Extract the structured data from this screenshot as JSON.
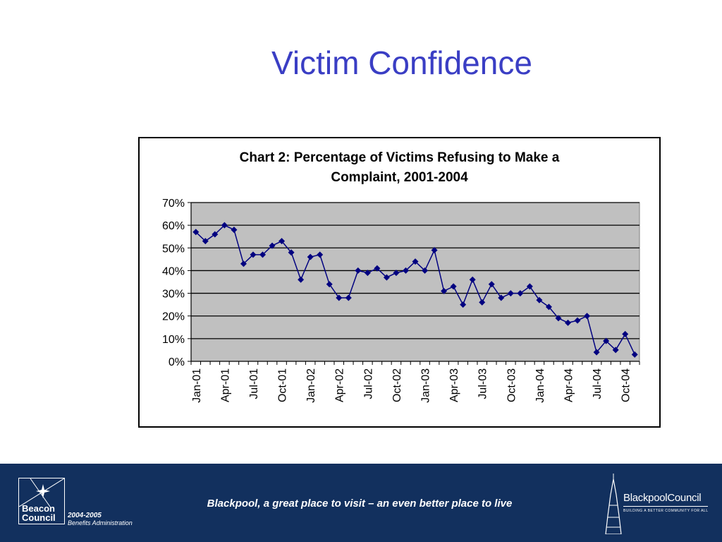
{
  "slide": {
    "title": "Victim Confidence"
  },
  "chart_data": {
    "type": "line",
    "title_line1": "Chart 2: Percentage of Victims Refusing to Make a",
    "title_line2": "Complaint, 2001-2004",
    "xlabel": "",
    "ylabel": "",
    "ylim": [
      0,
      0.7
    ],
    "y_ticks": [
      "0%",
      "10%",
      "20%",
      "30%",
      "40%",
      "50%",
      "60%",
      "70%"
    ],
    "x_tick_labels": [
      "Jan-01",
      "Apr-01",
      "Jul-01",
      "Oct-01",
      "Jan-02",
      "Apr-02",
      "Jul-02",
      "Oct-02",
      "Jan-03",
      "Apr-03",
      "Jul-03",
      "Oct-03",
      "Jan-04",
      "Apr-04",
      "Jul-04",
      "Oct-04"
    ],
    "grid": true,
    "plot_background": "#c0c0c0",
    "series_color": "#000080",
    "months": [
      "Jan-01",
      "Feb-01",
      "Mar-01",
      "Apr-01",
      "May-01",
      "Jun-01",
      "Jul-01",
      "Aug-01",
      "Sep-01",
      "Oct-01",
      "Nov-01",
      "Dec-01",
      "Jan-02",
      "Feb-02",
      "Mar-02",
      "Apr-02",
      "May-02",
      "Jun-02",
      "Jul-02",
      "Aug-02",
      "Sep-02",
      "Oct-02",
      "Nov-02",
      "Dec-02",
      "Jan-03",
      "Feb-03",
      "Mar-03",
      "Apr-03",
      "May-03",
      "Jun-03",
      "Jul-03",
      "Aug-03",
      "Sep-03",
      "Oct-03",
      "Nov-03",
      "Dec-03",
      "Jan-04",
      "Feb-04",
      "Mar-04",
      "Apr-04",
      "May-04",
      "Jun-04",
      "Jul-04",
      "Aug-04",
      "Sep-04",
      "Oct-04",
      "Nov-04"
    ],
    "values": [
      0.57,
      0.53,
      0.56,
      0.6,
      0.58,
      0.43,
      0.47,
      0.47,
      0.51,
      0.53,
      0.48,
      0.36,
      0.46,
      0.47,
      0.34,
      0.28,
      0.28,
      0.4,
      0.39,
      0.41,
      0.37,
      0.39,
      0.4,
      0.44,
      0.4,
      0.49,
      0.31,
      0.33,
      0.25,
      0.36,
      0.26,
      0.34,
      0.28,
      0.3,
      0.3,
      0.33,
      0.27,
      0.24,
      0.19,
      0.17,
      0.18,
      0.2,
      0.04,
      0.09,
      0.05,
      0.12,
      0.03
    ]
  },
  "footer": {
    "tagline": "Blackpool, a great place to visit – an even better place to live",
    "beacon_line1": "Beacon",
    "beacon_line2": "Council",
    "beacon_years": "2004-2005",
    "beacon_sub": "Benefits Administration",
    "council_name": "BlackpoolCouncil",
    "council_sub": "BUILDING A BETTER COMMUNITY FOR ALL"
  },
  "colors": {
    "title": "#3a3ec4",
    "footer_bg": "#12305e"
  }
}
